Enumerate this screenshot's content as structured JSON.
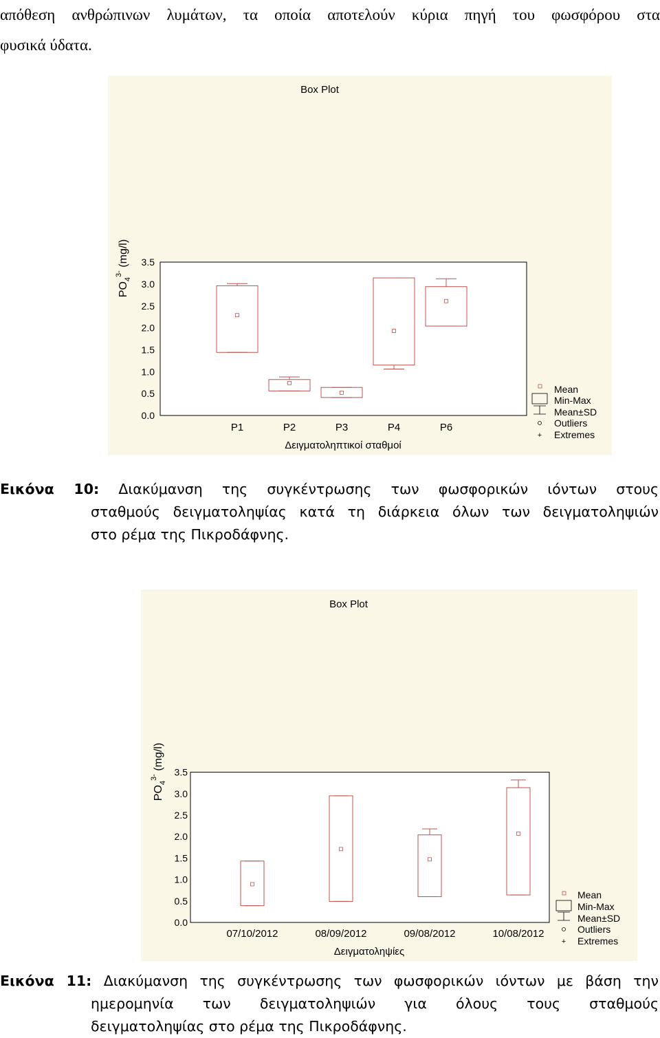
{
  "intro": {
    "line1": "απόθεση ανθρώπινων λυμάτων, τα οποία αποτελούν κύρια πηγή του φωσφόρου στα",
    "line2": "φυσικά ύδατα."
  },
  "figure10": {
    "caption_label": "Εικόνα 10:",
    "caption_line1": "Διακύμανση της συγκέντρωσης των φωσφορικών ιόντων στους",
    "caption_line2": "σταθμούς δειγματοληψίας κατά τη διάρκεια όλων των δειγματοληψιών",
    "caption_line3": "στο ρέμα της Πικροδάφνης."
  },
  "figure11": {
    "caption_label": "Εικόνα 11:",
    "caption_line1": "Διακύμανση της συγκέντρωσης των φωσφορικών ιόντων με βάση την",
    "caption_line2": "ημερομηνία των δειγματοληψιών για όλους τους σταθμούς",
    "caption_line3": "δειγματοληψίας στο ρέμα της Πικροδάφνης."
  },
  "legend": {
    "mean": "Mean",
    "minmax": "Min-Max",
    "meansd": "Mean±SD",
    "outliers": "Outliers",
    "extremes": "Extremes"
  },
  "chart_data": [
    {
      "type": "box",
      "title": "Box Plot",
      "xlabel": "Δειγματοληπτικοί σταθμοί",
      "ylabel_base": "PO",
      "ylabel_sub": "4",
      "ylabel_sup": "3-",
      "ylabel_unit": "(mg/l)",
      "ylim": [
        0,
        3.5
      ],
      "yticks": [
        "0.0",
        "0.5",
        "1.0",
        "1.5",
        "2.0",
        "2.5",
        "3.0",
        "3.5"
      ],
      "categories": [
        "P1",
        "P2",
        "P3",
        "P4",
        "P6"
      ],
      "mean": [
        2.29,
        0.74,
        0.52,
        1.93,
        2.61
      ],
      "sd_low": [
        1.44,
        0.56,
        0.41,
        1.15,
        2.04
      ],
      "sd_high": [
        2.96,
        0.82,
        0.64,
        3.14,
        2.94
      ],
      "min": [
        1.44,
        0.56,
        0.41,
        1.06,
        2.04
      ],
      "max": [
        3.01,
        0.88,
        0.64,
        3.14,
        3.12
      ]
    },
    {
      "type": "box",
      "title": "Box Plot",
      "xlabel": "Δειγματοληψίες",
      "ylabel_base": "PO",
      "ylabel_sub": "4",
      "ylabel_sup": "3-",
      "ylabel_unit": "(mg/l)",
      "ylim": [
        0,
        3.5
      ],
      "yticks": [
        "0.0",
        "0.5",
        "1.0",
        "1.5",
        "2.0",
        "2.5",
        "3.0",
        "3.5"
      ],
      "categories": [
        "07/10/2012",
        "08/09/2012",
        "09/08/2012",
        "10/08/2012"
      ],
      "mean": [
        0.89,
        1.71,
        1.47,
        2.07
      ],
      "sd_low": [
        0.39,
        0.49,
        0.6,
        0.64
      ],
      "sd_high": [
        1.43,
        2.95,
        2.04,
        3.14
      ],
      "min": [
        0.39,
        0.49,
        0.6,
        0.64
      ],
      "max": [
        1.43,
        2.95,
        2.18,
        3.32
      ]
    }
  ]
}
